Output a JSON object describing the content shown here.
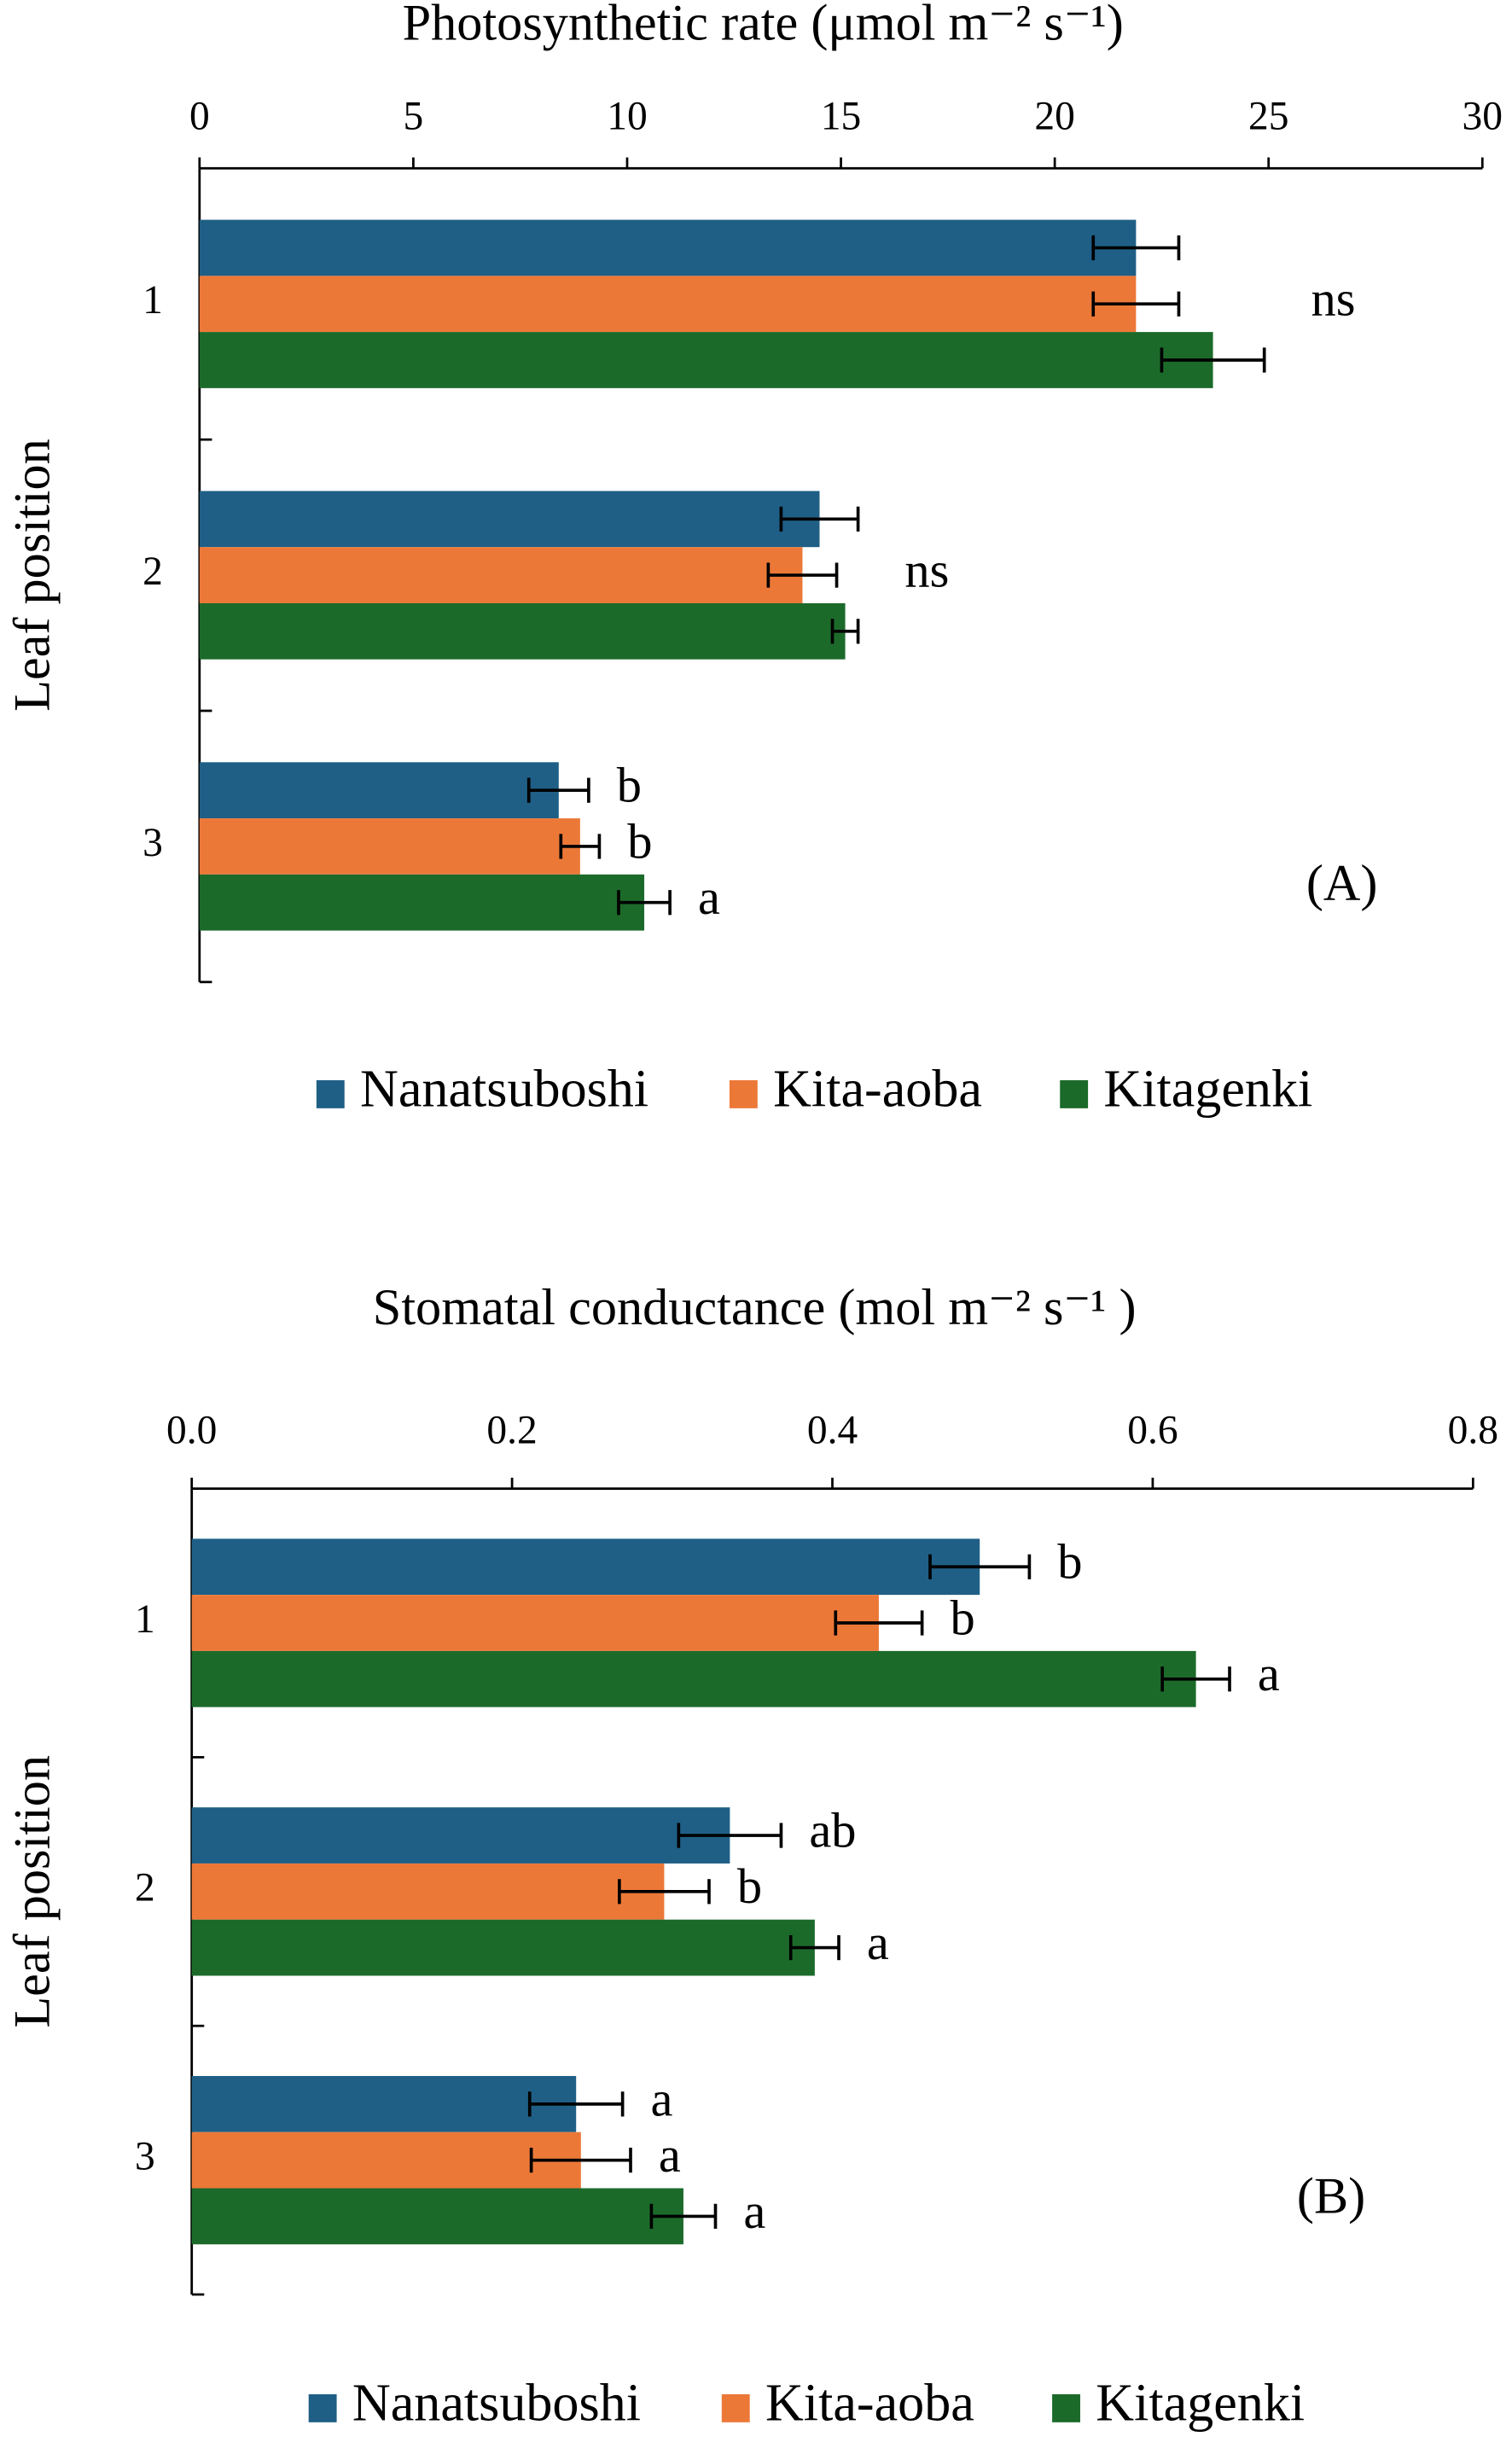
{
  "chart_data": [
    {
      "type": "bar",
      "orientation": "horizontal",
      "title": "Photosynthetic rate (μmol m⁻² s⁻¹)",
      "ylabel": "Leaf position",
      "panel_label": "(A)",
      "categories": [
        "1",
        "2",
        "3"
      ],
      "series": [
        {
          "name": "Nanatsuboshi",
          "color": "#1f5f86",
          "values": [
            21.9,
            14.5,
            8.4
          ],
          "errors": [
            1.0,
            0.9,
            0.7
          ]
        },
        {
          "name": "Kita-aoba",
          "color": "#ec7838",
          "values": [
            21.9,
            14.1,
            8.9
          ],
          "errors": [
            1.0,
            0.8,
            0.45
          ]
        },
        {
          "name": "Kitagenki",
          "color": "#1c6a2a",
          "values": [
            23.7,
            15.1,
            10.4
          ],
          "errors": [
            1.2,
            0.3,
            0.6
          ]
        }
      ],
      "annotations": [
        {
          "text": "ns",
          "category": "1"
        },
        {
          "text": "ns",
          "category": "2"
        },
        {
          "text": "b",
          "category": "3",
          "series": "Nanatsuboshi"
        },
        {
          "text": "b",
          "category": "3",
          "series": "Kita-aoba"
        },
        {
          "text": "a",
          "category": "3",
          "series": "Kitagenki"
        }
      ],
      "xlim": [
        0,
        30
      ],
      "xticks": [
        0,
        5,
        10,
        15,
        20,
        25,
        30
      ],
      "xaxis_position": "top",
      "legend": "bottom"
    },
    {
      "type": "bar",
      "orientation": "horizontal",
      "title": "Stomatal conductance (mol m⁻² s⁻¹ )",
      "ylabel": "Leaf position",
      "panel_label": "(B)",
      "categories": [
        "1",
        "2",
        "3"
      ],
      "series": [
        {
          "name": "Nanatsuboshi",
          "color": "#1f5f86",
          "values": [
            0.492,
            0.336,
            0.24
          ],
          "errors": [
            0.031,
            0.032,
            0.029
          ]
        },
        {
          "name": "Kita-aoba",
          "color": "#ec7838",
          "values": [
            0.429,
            0.295,
            0.243
          ],
          "errors": [
            0.027,
            0.028,
            0.031
          ]
        },
        {
          "name": "Kitagenki",
          "color": "#1c6a2a",
          "values": [
            0.627,
            0.389,
            0.307
          ],
          "errors": [
            0.021,
            0.015,
            0.02
          ]
        }
      ],
      "annotations": [
        {
          "text": "b",
          "category": "1",
          "series": "Nanatsuboshi"
        },
        {
          "text": "b",
          "category": "1",
          "series": "Kita-aoba"
        },
        {
          "text": "a",
          "category": "1",
          "series": "Kitagenki"
        },
        {
          "text": "ab",
          "category": "2",
          "series": "Nanatsuboshi"
        },
        {
          "text": "b",
          "category": "2",
          "series": "Kita-aoba"
        },
        {
          "text": "a",
          "category": "2",
          "series": "Kitagenki"
        },
        {
          "text": "a",
          "category": "3",
          "series": "Nanatsuboshi"
        },
        {
          "text": "a",
          "category": "3",
          "series": "Kita-aoba"
        },
        {
          "text": "a",
          "category": "3",
          "series": "Kitagenki"
        }
      ],
      "xlim": [
        0,
        0.8
      ],
      "xticks": [
        {
          "value": 0,
          "label": "0.0"
        },
        0.2,
        0.4,
        0.6,
        0.8
      ],
      "xaxis_position": "top",
      "legend": "bottom"
    }
  ]
}
